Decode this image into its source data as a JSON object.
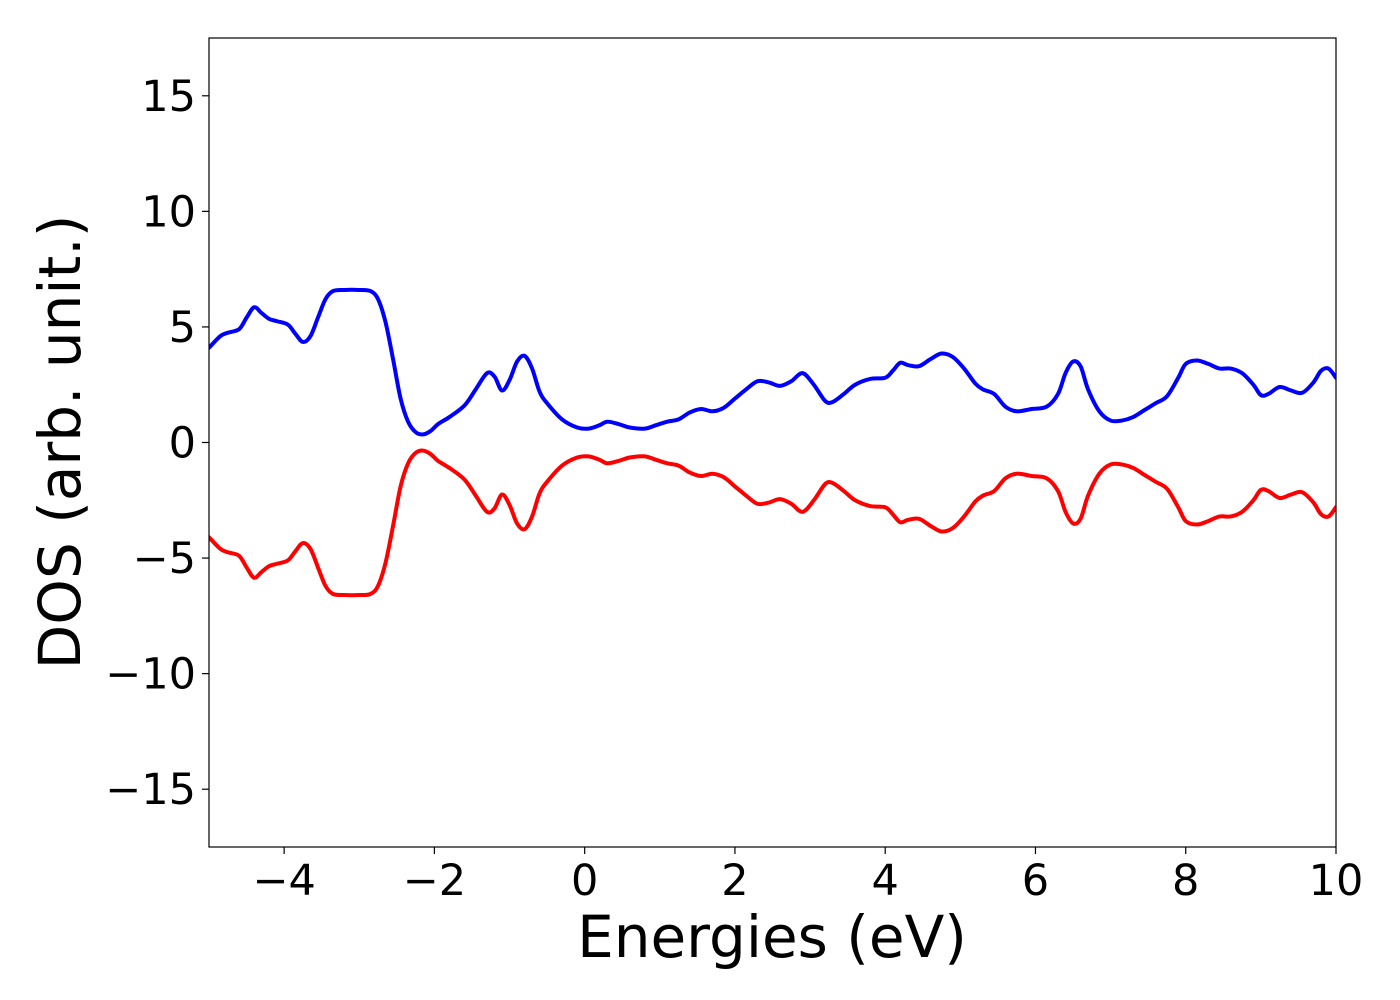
{
  "chart_data": {
    "type": "line",
    "xlabel": "Energies (eV)",
    "ylabel": "DOS (arb. unit.)",
    "xlim": [
      -5,
      10
    ],
    "ylim": [
      -17.5,
      17.5
    ],
    "xticks": [
      -4,
      -2,
      0,
      2,
      4,
      6,
      8,
      10
    ],
    "xtick_labels": [
      "−4",
      "−2",
      "0",
      "2",
      "4",
      "6",
      "8",
      "10"
    ],
    "yticks": [
      15,
      10,
      5,
      0,
      -5,
      -10,
      -15
    ],
    "ytick_labels": [
      "15",
      "10",
      "5",
      "0",
      "−5",
      "−10",
      "−15"
    ],
    "grid": false,
    "series": [
      {
        "color": "#0000ff",
        "x": [
          -5.0,
          -4.85,
          -4.75,
          -4.6,
          -4.5,
          -4.4,
          -4.3,
          -4.2,
          -4.1,
          -3.95,
          -3.85,
          -3.75,
          -3.65,
          -3.55,
          -3.45,
          -3.35,
          -3.2,
          -3.0,
          -2.85,
          -2.75,
          -2.65,
          -2.55,
          -2.45,
          -2.35,
          -2.25,
          -2.15,
          -2.05,
          -1.95,
          -1.8,
          -1.6,
          -1.45,
          -1.3,
          -1.2,
          -1.1,
          -1.0,
          -0.9,
          -0.8,
          -0.7,
          -0.6,
          -0.5,
          -0.3,
          -0.1,
          0.05,
          0.2,
          0.3,
          0.45,
          0.6,
          0.8,
          0.95,
          1.1,
          1.25,
          1.4,
          1.55,
          1.7,
          1.85,
          2.0,
          2.15,
          2.3,
          2.45,
          2.6,
          2.75,
          2.9,
          3.05,
          3.2,
          3.3,
          3.45,
          3.6,
          3.8,
          4.0,
          4.1,
          4.2,
          4.3,
          4.45,
          4.6,
          4.75,
          4.9,
          5.05,
          5.2,
          5.3,
          5.45,
          5.6,
          5.75,
          5.95,
          6.15,
          6.3,
          6.4,
          6.5,
          6.6,
          6.7,
          6.85,
          7.0,
          7.15,
          7.3,
          7.45,
          7.6,
          7.75,
          7.9,
          8.0,
          8.15,
          8.3,
          8.45,
          8.6,
          8.75,
          8.9,
          9.0,
          9.1,
          9.25,
          9.4,
          9.55,
          9.7,
          9.8,
          9.9,
          10.0
        ],
        "y": [
          4.1,
          4.6,
          4.75,
          4.9,
          5.4,
          5.85,
          5.6,
          5.35,
          5.25,
          5.1,
          4.7,
          4.35,
          4.6,
          5.4,
          6.2,
          6.55,
          6.6,
          6.6,
          6.55,
          6.2,
          5.2,
          3.6,
          1.9,
          0.9,
          0.45,
          0.35,
          0.5,
          0.8,
          1.1,
          1.6,
          2.3,
          3.0,
          2.85,
          2.25,
          2.7,
          3.5,
          3.75,
          3.2,
          2.2,
          1.7,
          1.0,
          0.65,
          0.6,
          0.75,
          0.9,
          0.8,
          0.65,
          0.6,
          0.75,
          0.9,
          1.0,
          1.3,
          1.45,
          1.35,
          1.5,
          1.9,
          2.3,
          2.65,
          2.6,
          2.45,
          2.65,
          3.0,
          2.5,
          1.8,
          1.75,
          2.1,
          2.5,
          2.75,
          2.8,
          3.1,
          3.45,
          3.35,
          3.3,
          3.6,
          3.85,
          3.7,
          3.2,
          2.55,
          2.3,
          2.1,
          1.55,
          1.35,
          1.45,
          1.55,
          2.1,
          3.0,
          3.5,
          3.3,
          2.3,
          1.35,
          0.95,
          0.95,
          1.1,
          1.4,
          1.7,
          2.0,
          2.8,
          3.4,
          3.55,
          3.4,
          3.2,
          3.2,
          3.0,
          2.5,
          2.05,
          2.1,
          2.4,
          2.25,
          2.15,
          2.6,
          3.1,
          3.2,
          2.8
        ]
      },
      {
        "color": "#ff0000",
        "x": [
          -5.0,
          -4.85,
          -4.75,
          -4.6,
          -4.5,
          -4.4,
          -4.3,
          -4.2,
          -4.1,
          -3.95,
          -3.85,
          -3.75,
          -3.65,
          -3.55,
          -3.45,
          -3.35,
          -3.2,
          -3.0,
          -2.85,
          -2.75,
          -2.65,
          -2.55,
          -2.45,
          -2.35,
          -2.25,
          -2.15,
          -2.05,
          -1.95,
          -1.8,
          -1.6,
          -1.45,
          -1.3,
          -1.2,
          -1.1,
          -1.0,
          -0.9,
          -0.8,
          -0.7,
          -0.6,
          -0.5,
          -0.3,
          -0.1,
          0.05,
          0.2,
          0.3,
          0.45,
          0.6,
          0.8,
          0.95,
          1.1,
          1.25,
          1.4,
          1.55,
          1.7,
          1.85,
          2.0,
          2.15,
          2.3,
          2.45,
          2.6,
          2.75,
          2.9,
          3.05,
          3.2,
          3.3,
          3.45,
          3.6,
          3.8,
          4.0,
          4.1,
          4.2,
          4.3,
          4.45,
          4.6,
          4.75,
          4.9,
          5.05,
          5.2,
          5.3,
          5.45,
          5.6,
          5.75,
          5.95,
          6.15,
          6.3,
          6.4,
          6.5,
          6.6,
          6.7,
          6.85,
          7.0,
          7.15,
          7.3,
          7.45,
          7.6,
          7.75,
          7.9,
          8.0,
          8.15,
          8.3,
          8.45,
          8.6,
          8.75,
          8.9,
          9.0,
          9.1,
          9.25,
          9.4,
          9.55,
          9.7,
          9.8,
          9.9,
          10.0
        ],
        "y": [
          -4.1,
          -4.6,
          -4.75,
          -4.9,
          -5.4,
          -5.85,
          -5.6,
          -5.35,
          -5.25,
          -5.1,
          -4.7,
          -4.35,
          -4.6,
          -5.4,
          -6.2,
          -6.55,
          -6.6,
          -6.6,
          -6.55,
          -6.2,
          -5.2,
          -3.6,
          -1.9,
          -0.9,
          -0.45,
          -0.35,
          -0.5,
          -0.8,
          -1.1,
          -1.6,
          -2.3,
          -3.0,
          -2.85,
          -2.25,
          -2.7,
          -3.5,
          -3.75,
          -3.2,
          -2.2,
          -1.7,
          -1.0,
          -0.65,
          -0.6,
          -0.75,
          -0.9,
          -0.8,
          -0.65,
          -0.6,
          -0.75,
          -0.9,
          -1.0,
          -1.3,
          -1.45,
          -1.35,
          -1.5,
          -1.9,
          -2.3,
          -2.65,
          -2.6,
          -2.45,
          -2.65,
          -3.0,
          -2.5,
          -1.8,
          -1.75,
          -2.1,
          -2.5,
          -2.75,
          -2.8,
          -3.1,
          -3.45,
          -3.35,
          -3.3,
          -3.6,
          -3.85,
          -3.7,
          -3.2,
          -2.55,
          -2.3,
          -2.1,
          -1.55,
          -1.35,
          -1.45,
          -1.55,
          -2.1,
          -3.0,
          -3.5,
          -3.3,
          -2.3,
          -1.35,
          -0.95,
          -0.95,
          -1.1,
          -1.4,
          -1.7,
          -2.0,
          -2.8,
          -3.4,
          -3.55,
          -3.4,
          -3.2,
          -3.2,
          -3.0,
          -2.5,
          -2.05,
          -2.1,
          -2.4,
          -2.25,
          -2.15,
          -2.6,
          -3.1,
          -3.2,
          -2.8
        ]
      }
    ]
  }
}
